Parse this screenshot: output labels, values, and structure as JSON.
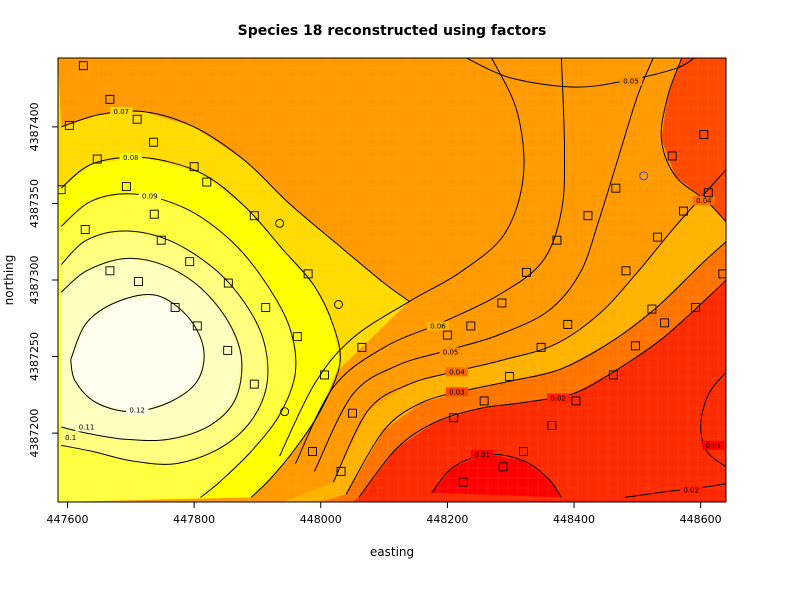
{
  "chart_data": {
    "type": "heatmap",
    "title": "Species 18 reconstructed using factors",
    "xlabel": "easting",
    "ylabel": "northing",
    "xlim": [
      447585,
      448640
    ],
    "ylim": [
      4387155,
      4387445
    ],
    "x_ticks": [
      "447600",
      "447800",
      "448000",
      "448200",
      "448400",
      "448600"
    ],
    "y_ticks": [
      "4387200",
      "4387250",
      "4387300",
      "4387350",
      "4387400"
    ],
    "grid": true,
    "legend": "none",
    "colormap": {
      "name": "heat",
      "stops": [
        {
          "value": 0.01,
          "color": "#ff0000"
        },
        {
          "value": 0.02,
          "color": "#ff2400"
        },
        {
          "value": 0.03,
          "color": "#ff4900"
        },
        {
          "value": 0.04,
          "color": "#ff6d00"
        },
        {
          "value": 0.05,
          "color": "#ff9200"
        },
        {
          "value": 0.06,
          "color": "#ffb600"
        },
        {
          "value": 0.07,
          "color": "#ffdb00"
        },
        {
          "value": 0.08,
          "color": "#ffff00"
        },
        {
          "value": 0.09,
          "color": "#ffff40"
        },
        {
          "value": 0.1,
          "color": "#ffff80"
        },
        {
          "value": 0.11,
          "color": "#ffffbf"
        },
        {
          "value": 0.12,
          "color": "#ffffef"
        }
      ]
    },
    "contours": [
      {
        "level": "0.01",
        "points": [
          [
            448175,
            4387161
          ],
          [
            448210,
            4387178
          ],
          [
            448265,
            4387186
          ],
          [
            448320,
            4387182
          ],
          [
            448360,
            4387170
          ],
          [
            448380,
            4387158
          ]
        ]
      },
      {
        "level": "0.02",
        "points": [
          [
            448060,
            4387158
          ],
          [
            448120,
            4387190
          ],
          [
            448180,
            4387207
          ],
          [
            448250,
            4387216
          ],
          [
            448320,
            4387220
          ],
          [
            448400,
            4387226
          ],
          [
            448470,
            4387242
          ],
          [
            448540,
            4387262
          ],
          [
            448615,
            4387290
          ],
          [
            448640,
            4387300
          ]
        ]
      },
      {
        "level": "0.02",
        "points": [
          [
            448480,
            4387158
          ],
          [
            448550,
            4387162
          ],
          [
            448610,
            4387165
          ],
          [
            448640,
            4387167
          ]
        ]
      },
      {
        "level": "0.03",
        "points": [
          [
            448040,
            4387160
          ],
          [
            448100,
            4387202
          ],
          [
            448160,
            4387220
          ],
          [
            448230,
            4387228
          ],
          [
            448300,
            4387234
          ],
          [
            448380,
            4387242
          ],
          [
            448460,
            4387260
          ],
          [
            448530,
            4387282
          ],
          [
            448600,
            4387310
          ],
          [
            448640,
            4387325
          ]
        ]
      },
      {
        "level": "0.01",
        "points": [
          [
            448640,
            4387178
          ],
          [
            448610,
            4387188
          ],
          [
            448600,
            4387205
          ],
          [
            448612,
            4387225
          ],
          [
            448640,
            4387240
          ]
        ]
      },
      {
        "level": "0.04",
        "points": [
          [
            448020,
            4387168
          ],
          [
            448075,
            4387215
          ],
          [
            448140,
            4387232
          ],
          [
            448210,
            4387240
          ],
          [
            448290,
            4387248
          ],
          [
            448370,
            4387258
          ],
          [
            448440,
            4387278
          ],
          [
            448500,
            4387305
          ],
          [
            448560,
            4387335
          ],
          [
            448640,
            4387372
          ]
        ]
      },
      {
        "level": "0.05",
        "points": [
          [
            447990,
            4387175
          ],
          [
            448050,
            4387225
          ],
          [
            448120,
            4387244
          ],
          [
            448200,
            4387254
          ],
          [
            448280,
            4387264
          ],
          [
            448360,
            4387280
          ],
          [
            448410,
            4387305
          ],
          [
            448440,
            4387340
          ],
          [
            448470,
            4387380
          ],
          [
            448500,
            4387420
          ],
          [
            448525,
            4387445
          ]
        ]
      },
      {
        "level": "0.06",
        "points": [
          [
            447960,
            4387180
          ],
          [
            448020,
            4387230
          ],
          [
            448100,
            4387256
          ],
          [
            448190,
            4387272
          ],
          [
            448280,
            4387290
          ],
          [
            448350,
            4387312
          ],
          [
            448380,
            4387345
          ],
          [
            448385,
            4387385
          ],
          [
            448380,
            4387445
          ]
        ]
      },
      {
        "level": "0.05",
        "points": [
          [
            448230,
            4387445
          ],
          [
            448300,
            4387432
          ],
          [
            448400,
            4387426
          ],
          [
            448480,
            4387430
          ],
          [
            448560,
            4387438
          ],
          [
            448590,
            4387445
          ]
        ]
      },
      {
        "level": "0.04",
        "points": [
          [
            448640,
            4387338
          ],
          [
            448608,
            4387352
          ],
          [
            448560,
            4387368
          ],
          [
            448538,
            4387392
          ],
          [
            448548,
            4387420
          ],
          [
            448570,
            4387445
          ]
        ]
      },
      {
        "level": "0.07",
        "points": [
          [
            447935,
            4387185
          ],
          [
            447990,
            4387232
          ],
          [
            448050,
            4387262
          ],
          [
            448140,
            4387286
          ],
          [
            448220,
            4387305
          ],
          [
            448290,
            4387330
          ],
          [
            448320,
            4387368
          ],
          [
            448310,
            4387410
          ],
          [
            448270,
            4387445
          ]
        ]
      },
      {
        "level": "0.07",
        "points": [
          [
            447590,
            4387400
          ],
          [
            447650,
            4387408
          ],
          [
            447720,
            4387410
          ],
          [
            447800,
            4387400
          ],
          [
            447880,
            4387378
          ],
          [
            447950,
            4387350
          ],
          [
            448030,
            4387322
          ],
          [
            448100,
            4387298
          ],
          [
            448140,
            4387286
          ]
        ]
      },
      {
        "level": "0.08",
        "points": [
          [
            447590,
            4387360
          ],
          [
            447640,
            4387376
          ],
          [
            447720,
            4387380
          ],
          [
            447810,
            4387370
          ],
          [
            447880,
            4387348
          ],
          [
            447940,
            4387320
          ],
          [
            447990,
            4387296
          ],
          [
            448020,
            4387270
          ],
          [
            448030,
            4387245
          ],
          [
            448000,
            4387215
          ],
          [
            447960,
            4387190
          ],
          [
            447920,
            4387170
          ],
          [
            447890,
            4387158
          ]
        ]
      },
      {
        "level": "0.09",
        "points": [
          [
            447590,
            4387335
          ],
          [
            447640,
            4387352
          ],
          [
            447710,
            4387356
          ],
          [
            447790,
            4387346
          ],
          [
            447860,
            4387325
          ],
          [
            447910,
            4387300
          ],
          [
            447950,
            4387270
          ],
          [
            447960,
            4387240
          ],
          [
            447935,
            4387212
          ],
          [
            447890,
            4387188
          ],
          [
            447840,
            4387168
          ],
          [
            447810,
            4387158
          ]
        ]
      },
      {
        "level": "0.10",
        "points": [
          [
            447590,
            4387310
          ],
          [
            447630,
            4387326
          ],
          [
            447690,
            4387332
          ],
          [
            447760,
            4387326
          ],
          [
            447830,
            4387308
          ],
          [
            447880,
            4387285
          ],
          [
            447910,
            4387260
          ],
          [
            447915,
            4387232
          ],
          [
            447890,
            4387208
          ],
          [
            447840,
            4387190
          ],
          [
            447770,
            4387180
          ],
          [
            447700,
            4387182
          ],
          [
            447640,
            4387188
          ],
          [
            447590,
            4387192
          ]
        ]
      },
      {
        "level": "0.11",
        "points": [
          [
            447590,
            4387292
          ],
          [
            447630,
            4387306
          ],
          [
            447690,
            4387314
          ],
          [
            447750,
            4387310
          ],
          [
            447810,
            4387295
          ],
          [
            447855,
            4387272
          ],
          [
            447875,
            4387248
          ],
          [
            447865,
            4387222
          ],
          [
            447825,
            4387205
          ],
          [
            447760,
            4387196
          ],
          [
            447690,
            4387196
          ],
          [
            447630,
            4387200
          ],
          [
            447590,
            4387204
          ]
        ]
      },
      {
        "level": "0.12",
        "points": [
          [
            447605,
            4387248
          ],
          [
            447630,
            4387272
          ],
          [
            447680,
            4387286
          ],
          [
            447740,
            4387290
          ],
          [
            447790,
            4387276
          ],
          [
            447815,
            4387255
          ],
          [
            447805,
            4387234
          ],
          [
            447760,
            4387220
          ],
          [
            447700,
            4387214
          ],
          [
            447645,
            4387220
          ],
          [
            447612,
            4387234
          ],
          [
            447605,
            4387248
          ]
        ]
      }
    ],
    "contour_labels": [
      {
        "text": "0.12",
        "x": 447710,
        "y": 4387215
      },
      {
        "text": "0.11",
        "x": 447630,
        "y": 4387204
      },
      {
        "text": "0.1",
        "x": 447605,
        "y": 4387197
      },
      {
        "text": "0.09",
        "x": 447730,
        "y": 4387355
      },
      {
        "text": "0.08",
        "x": 447700,
        "y": 4387380
      },
      {
        "text": "0.07",
        "x": 447685,
        "y": 4387410
      },
      {
        "text": "0.06",
        "x": 448185,
        "y": 4387270
      },
      {
        "text": "0.05",
        "x": 448205,
        "y": 4387253
      },
      {
        "text": "0.04",
        "x": 448215,
        "y": 4387240
      },
      {
        "text": "0.03",
        "x": 448215,
        "y": 4387227
      },
      {
        "text": "0.02",
        "x": 448375,
        "y": 4387223
      },
      {
        "text": "0.01",
        "x": 448255,
        "y": 4387186
      },
      {
        "text": "0.05",
        "x": 448490,
        "y": 4387430
      },
      {
        "text": "0.04",
        "x": 448605,
        "y": 4387352
      },
      {
        "text": "0.01",
        "x": 448620,
        "y": 4387192
      },
      {
        "text": "0.02",
        "x": 448585,
        "y": 4387163
      }
    ],
    "sample_points_square": [
      [
        447625,
        4387440
      ],
      [
        447667,
        4387418
      ],
      [
        447603,
        4387401
      ],
      [
        447710,
        4387405
      ],
      [
        447736,
        4387390
      ],
      [
        447647,
        4387379
      ],
      [
        447800,
        4387374
      ],
      [
        447693,
        4387361
      ],
      [
        447820,
        4387364
      ],
      [
        447590,
        4387359
      ],
      [
        447737,
        4387343
      ],
      [
        447628,
        4387333
      ],
      [
        447748,
        4387326
      ],
      [
        447895,
        4387342
      ],
      [
        447793,
        4387312
      ],
      [
        447667,
        4387306
      ],
      [
        447712,
        4387299
      ],
      [
        447980,
        4387304
      ],
      [
        447854,
        4387298
      ],
      [
        447770,
        4387282
      ],
      [
        447913,
        4387282
      ],
      [
        447805,
        4387270
      ],
      [
        447963,
        4387263
      ],
      [
        448065,
        4387256
      ],
      [
        448200,
        4387264
      ],
      [
        447853,
        4387254
      ],
      [
        448006,
        4387238
      ],
      [
        447895,
        4387232
      ],
      [
        448050,
        4387213
      ],
      [
        448210,
        4387210
      ],
      [
        447987,
        4387188
      ],
      [
        448032,
        4387175
      ],
      [
        448225,
        4387168
      ],
      [
        448288,
        4387178
      ],
      [
        448320,
        4387188
      ],
      [
        448365,
        4387205
      ],
      [
        448258,
        4387221
      ],
      [
        448298,
        4387237
      ],
      [
        448403,
        4387221
      ],
      [
        448462,
        4387238
      ],
      [
        448497,
        4387257
      ],
      [
        448348,
        4387256
      ],
      [
        448543,
        4387272
      ],
      [
        448592,
        4387282
      ],
      [
        448635,
        4387304
      ],
      [
        448482,
        4387306
      ],
      [
        448523,
        4387281
      ],
      [
        448390,
        4387271
      ],
      [
        448237,
        4387270
      ],
      [
        448286,
        4387285
      ],
      [
        448325,
        4387305
      ],
      [
        448373,
        4387326
      ],
      [
        448422,
        4387342
      ],
      [
        448532,
        4387328
      ],
      [
        448573,
        4387345
      ],
      [
        448612,
        4387357
      ],
      [
        448466,
        4387360
      ],
      [
        448555,
        4387381
      ],
      [
        448605,
        4387395
      ]
    ],
    "sample_points_circle": [
      [
        448510,
        4387368
      ],
      [
        447935,
        4387337
      ],
      [
        448028,
        4387284
      ],
      [
        447943,
        4387214
      ]
    ]
  }
}
